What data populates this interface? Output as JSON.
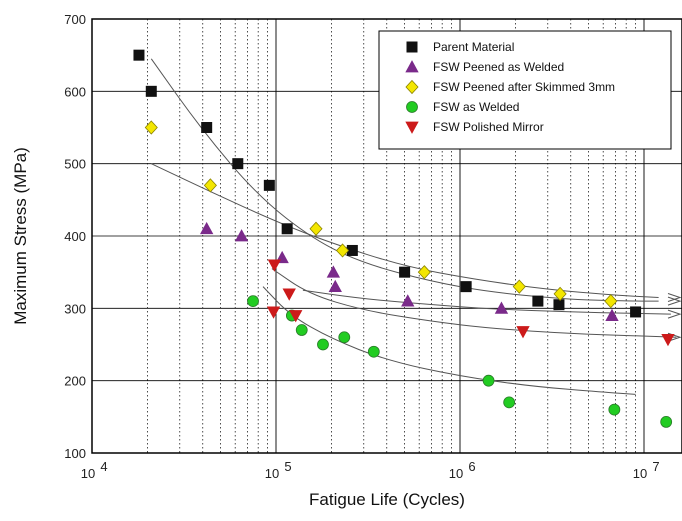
{
  "chart_data": {
    "type": "scatter",
    "title": "",
    "xlabel": "Fatigue Life (Cycles)",
    "ylabel": "Maximum Stress (MPa)",
    "xscale": "log",
    "xlim": [
      10000,
      15000000
    ],
    "ylim": [
      100,
      700
    ],
    "x_ticks": [
      {
        "value": 10000,
        "base": "10",
        "exp": "4"
      },
      {
        "value": 100000,
        "base": "10",
        "exp": "5"
      },
      {
        "value": 1000000,
        "base": "10",
        "exp": "6"
      },
      {
        "value": 10000000,
        "base": "10",
        "exp": "7"
      }
    ],
    "y_ticks": [
      100,
      200,
      300,
      400,
      500,
      600,
      700
    ],
    "grid": true,
    "legend_position": "top-right",
    "series": [
      {
        "name": "Parent Material",
        "marker": "square",
        "color": "#111111",
        "points": [
          [
            18000,
            650
          ],
          [
            21000,
            600
          ],
          [
            42000,
            550
          ],
          [
            62000,
            500
          ],
          [
            92000,
            470
          ],
          [
            115000,
            410
          ],
          [
            260000,
            380
          ],
          [
            500000,
            350
          ],
          [
            1080000,
            330
          ],
          [
            2650000,
            310
          ],
          [
            3450000,
            305
          ],
          [
            9000000,
            295
          ]
        ],
        "trend": [
          [
            21000,
            645
          ],
          [
            40000,
            545
          ],
          [
            80000,
            455
          ],
          [
            160000,
            395
          ],
          [
            300000,
            362
          ],
          [
            700000,
            337
          ],
          [
            1500000,
            322
          ],
          [
            4000000,
            312
          ],
          [
            9000000,
            310
          ],
          [
            12000000,
            310
          ]
        ]
      },
      {
        "name": "FSW Peened as Welded",
        "marker": "triangle-up",
        "color": "#7a2a8a",
        "points": [
          [
            42000,
            410
          ],
          [
            65000,
            400
          ],
          [
            108000,
            370
          ],
          [
            205000,
            350
          ],
          [
            210000,
            330
          ],
          [
            520000,
            310
          ],
          [
            1680000,
            300
          ],
          [
            6700000,
            290
          ]
        ],
        "trend": [
          [
            140000,
            325
          ],
          [
            300000,
            313
          ],
          [
            700000,
            305
          ],
          [
            1500000,
            299
          ],
          [
            4000000,
            295
          ],
          [
            9000000,
            293
          ],
          [
            14000000,
            292
          ]
        ]
      },
      {
        "name": "FSW Peened after Skimmed 3mm",
        "marker": "diamond",
        "color": "#f3e600",
        "points": [
          [
            21000,
            550
          ],
          [
            44000,
            470
          ],
          [
            165000,
            410
          ],
          [
            230000,
            380
          ],
          [
            640000,
            350
          ],
          [
            2100000,
            330
          ],
          [
            3500000,
            320
          ],
          [
            6600000,
            310
          ]
        ],
        "trend": [
          [
            21000,
            500
          ],
          [
            45000,
            460
          ],
          [
            100000,
            420
          ],
          [
            200000,
            390
          ],
          [
            500000,
            358
          ],
          [
            1200000,
            340
          ],
          [
            3000000,
            326
          ],
          [
            7000000,
            318
          ],
          [
            12000000,
            315
          ]
        ]
      },
      {
        "name": "FSW as Welded",
        "marker": "circle",
        "color": "#22cc22",
        "points": [
          [
            75000,
            310
          ],
          [
            122000,
            290
          ],
          [
            138000,
            270
          ],
          [
            180000,
            250
          ],
          [
            235000,
            260
          ],
          [
            340000,
            240
          ],
          [
            1430000,
            200
          ],
          [
            1850000,
            170
          ],
          [
            6900000,
            160
          ],
          [
            13200000,
            143
          ]
        ],
        "trend": [
          [
            85000,
            330
          ],
          [
            120000,
            290
          ],
          [
            200000,
            258
          ],
          [
            400000,
            228
          ],
          [
            1000000,
            206
          ],
          [
            2500000,
            192
          ],
          [
            6000000,
            184
          ],
          [
            9000000,
            181
          ]
        ]
      },
      {
        "name": "FSW Polished Mirror",
        "marker": "triangle-down",
        "color": "#cc1a1a",
        "points": [
          [
            98000,
            360
          ],
          [
            118000,
            320
          ],
          [
            128000,
            290
          ],
          [
            97000,
            295
          ],
          [
            2200000,
            268
          ],
          [
            13500000,
            257
          ]
        ],
        "trend": [
          [
            95000,
            355
          ],
          [
            150000,
            320
          ],
          [
            300000,
            297
          ],
          [
            700000,
            282
          ],
          [
            1500000,
            272
          ],
          [
            4000000,
            265
          ],
          [
            9000000,
            262
          ],
          [
            15000000,
            260
          ]
        ]
      }
    ]
  }
}
